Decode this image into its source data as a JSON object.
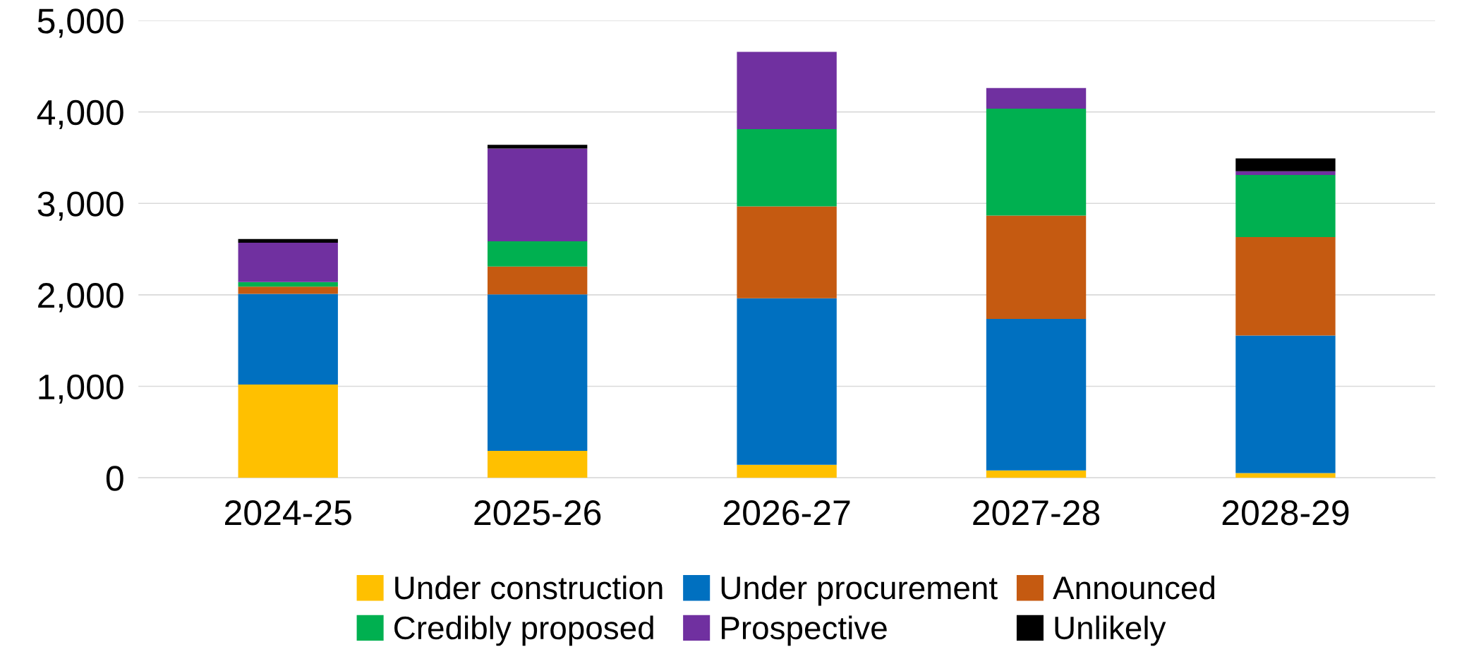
{
  "chart_data": {
    "type": "bar",
    "stacked": true,
    "categories": [
      "2024-25",
      "2025-26",
      "2026-27",
      "2027-28",
      "2028-29"
    ],
    "series": [
      {
        "name": "Under construction",
        "color": "#ffc000",
        "values": [
          1020,
          295,
          142,
          81,
          51
        ]
      },
      {
        "name": "Under procurement",
        "color": "#0070c0",
        "values": [
          990,
          1710,
          1820,
          1655,
          1505
        ]
      },
      {
        "name": "Announced",
        "color": "#c55a11",
        "values": [
          80,
          305,
          1005,
          1130,
          1075
        ]
      },
      {
        "name": "Credibly proposed",
        "color": "#00b050",
        "values": [
          50,
          275,
          845,
          1170,
          680
        ]
      },
      {
        "name": "Prospective",
        "color": "#7030a0",
        "values": [
          430,
          1015,
          845,
          225,
          40
        ]
      },
      {
        "name": "Unlikely",
        "color": "#000000",
        "values": [
          40,
          40,
          0,
          0,
          140
        ]
      }
    ],
    "ylim": [
      0,
      5000
    ],
    "yticks": [
      0,
      {
        "value": 1000,
        "label": "1,000"
      },
      {
        "value": 2000,
        "label": "2,000"
      },
      {
        "value": 3000,
        "label": "3,000"
      },
      {
        "value": 4000,
        "label": "4,000"
      },
      {
        "value": 5000,
        "label": "5,000"
      }
    ],
    "grid": "y",
    "legend": "bottom"
  }
}
